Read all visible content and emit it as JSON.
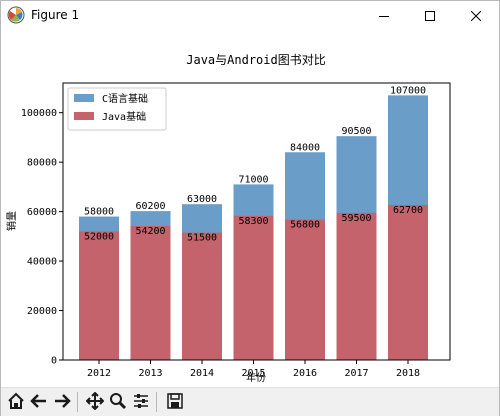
{
  "window": {
    "title": "Figure 1",
    "minimize_label": "—",
    "maximize_label": "☐",
    "close_label": "✕"
  },
  "toolbar": {
    "tools": [
      "home-icon",
      "back-icon",
      "forward-icon",
      "pan-icon",
      "zoom-icon",
      "subplots-icon",
      "save-icon"
    ]
  },
  "colors": {
    "series_c": "#6a9ec9",
    "series_java": "#c5636c",
    "axis": "#000000"
  },
  "chart_data": {
    "type": "bar",
    "title": "Java与Android图书对比",
    "xlabel": "年份",
    "ylabel": "销量",
    "categories": [
      "2012",
      "2013",
      "2014",
      "2015",
      "2016",
      "2017",
      "2018"
    ],
    "ylim": [
      0,
      112000
    ],
    "yticks": [
      0,
      20000,
      40000,
      60000,
      80000,
      100000
    ],
    "ytick_labels": [
      "0",
      "20000",
      "40000",
      "60000",
      "80000",
      "100000"
    ],
    "legend_position": "top-left",
    "series": [
      {
        "name": "C语言基础",
        "values": [
          58000,
          60200,
          63000,
          71000,
          84000,
          90500,
          107000
        ],
        "labels": [
          "58000",
          "60200",
          "63000",
          "71000",
          "84000",
          "90500",
          "107000"
        ]
      },
      {
        "name": "Java基础",
        "values": [
          52000,
          54200,
          51500,
          58300,
          56800,
          59500,
          62700
        ],
        "labels": [
          "52000",
          "54200",
          "51500",
          "58300",
          "56800",
          "59500",
          "62700"
        ]
      }
    ]
  }
}
